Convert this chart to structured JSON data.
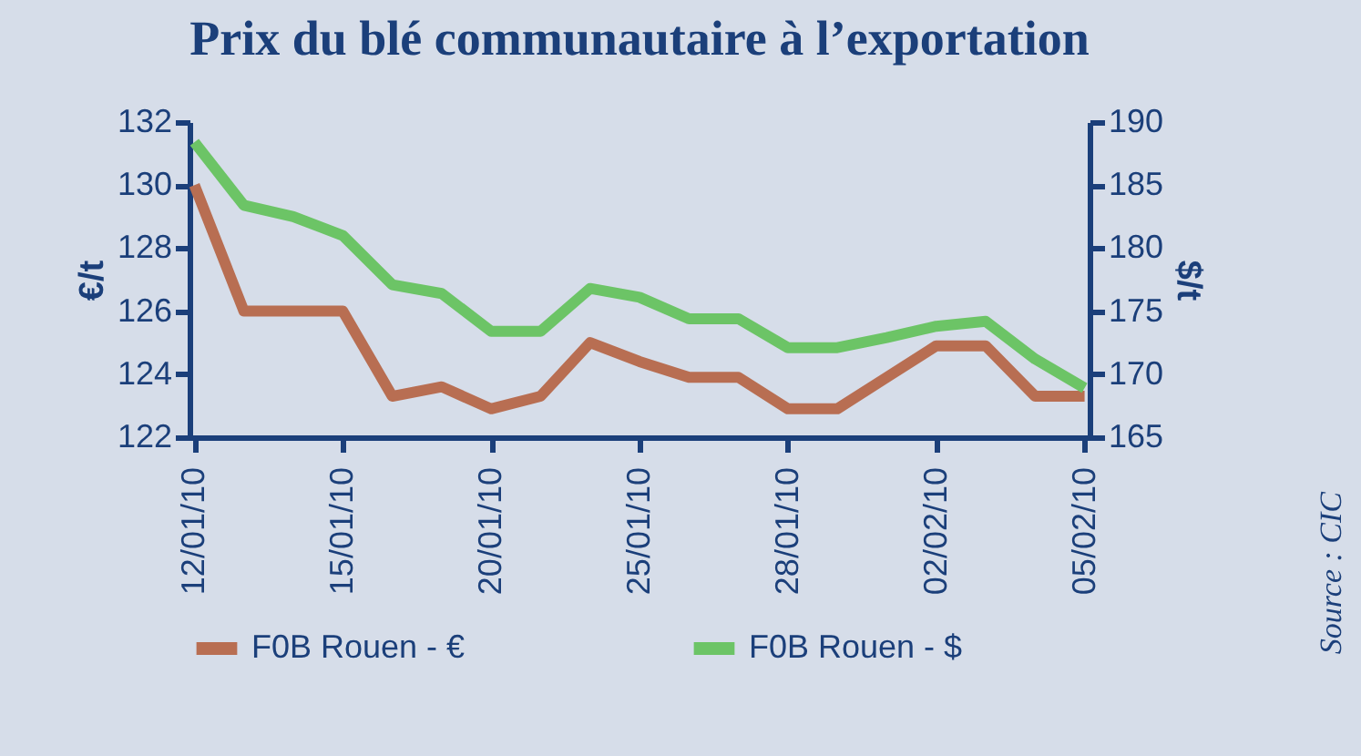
{
  "chart_data": {
    "type": "line",
    "title": "Prix du blé communautaire à l’exportation",
    "ylabel": "€/t",
    "y2label": "$/t",
    "categories": [
      "12/01/10",
      null,
      null,
      "15/01/10",
      null,
      null,
      "20/01/10",
      null,
      null,
      "25/01/10",
      null,
      null,
      "28/01/10",
      null,
      null,
      "02/02/10",
      null,
      null,
      "05/02/10"
    ],
    "series": [
      {
        "name": "F0B Rouen - €",
        "color": "#b86e52",
        "values": [
          130,
          126,
          126,
          126,
          123.3,
          123.6,
          122.9,
          123.3,
          125,
          124.4,
          123.9,
          123.9,
          122.9,
          122.9,
          123.9,
          124.9,
          124.9,
          123.3,
          123.3
        ]
      },
      {
        "name": "F0B Rouen - $",
        "color": "#6cc466",
        "axis": "y2",
        "values": [
          188.4,
          183.4,
          182.5,
          181,
          177.1,
          176.4,
          173.4,
          173.4,
          176.8,
          176.1,
          174.4,
          174.4,
          172.1,
          172.1,
          172.9,
          173.8,
          174.2,
          171.2,
          168.9
        ]
      }
    ],
    "ylim": [
      122,
      132
    ],
    "yticks": [
      122,
      124,
      126,
      128,
      130,
      132
    ],
    "y2lim": [
      165,
      190
    ],
    "y2ticks": [
      165,
      170,
      175,
      180,
      185,
      190
    ],
    "grid": false,
    "legend": "bottom",
    "line_style": "solid",
    "annotations": [
      "Source : CIC"
    ]
  }
}
